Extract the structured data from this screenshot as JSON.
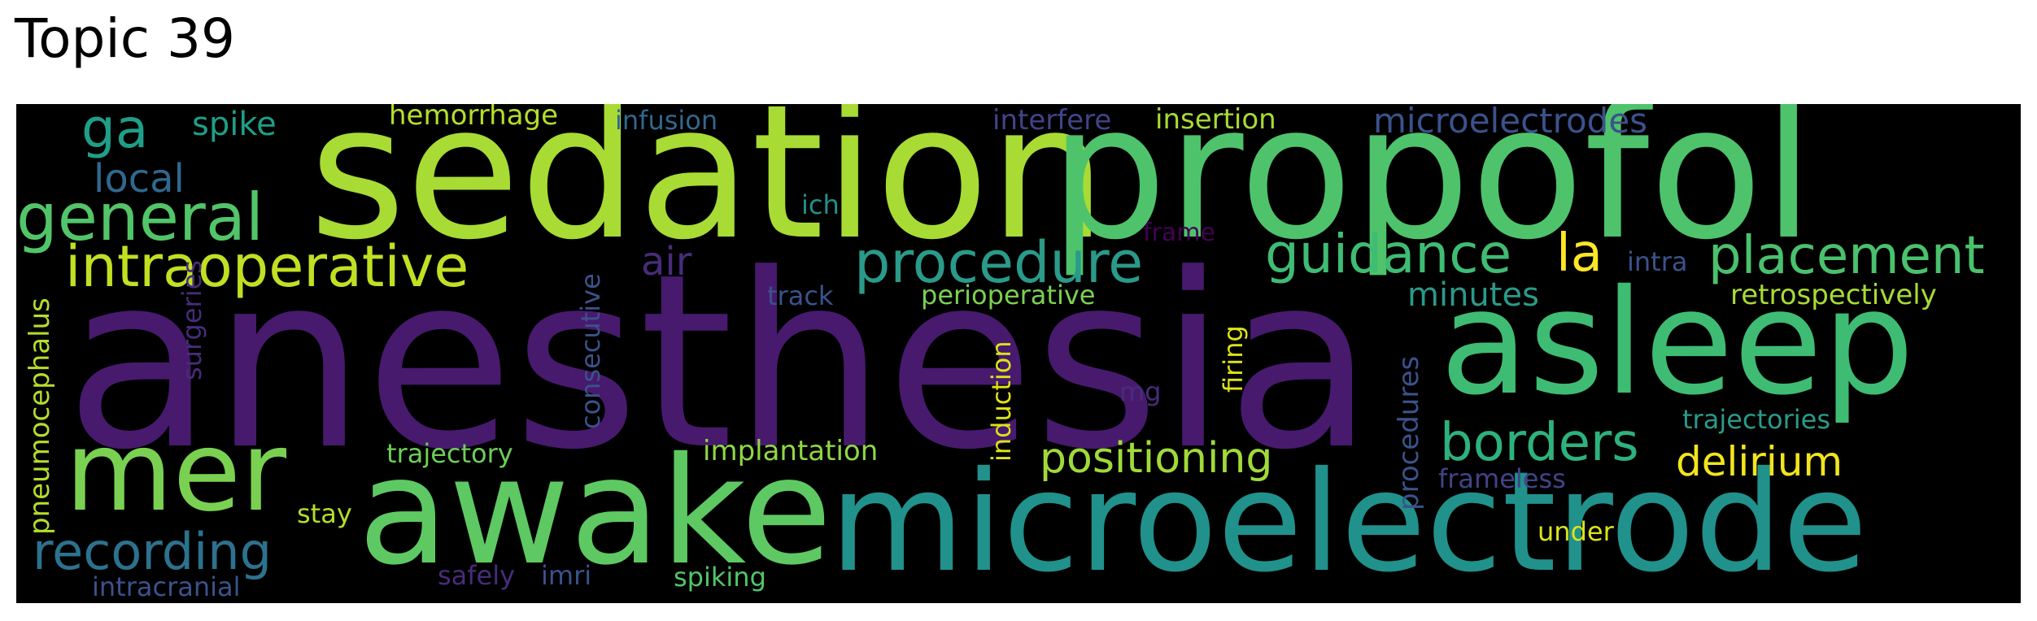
{
  "title": "Topic 39",
  "colors": {
    "purple": "#440154",
    "indigo": "#472c7a",
    "blue": "#3b528b",
    "teal_blue": "#31688e",
    "teal": "#26828e",
    "teal_green": "#1f9e89",
    "green": "#35b779",
    "lime_green": "#6ece58",
    "lime": "#b5de2b",
    "yellow": "#fde725"
  },
  "words": {
    "anesthesia": "anesthesia",
    "sedation": "sedation",
    "propofol": "propofol",
    "asleep": "asleep",
    "awake": "awake",
    "microelectrode": "microelectrode",
    "mer": "mer",
    "general": "general",
    "intraoperative": "intraoperative",
    "procedure": "procedure",
    "guidance": "guidance",
    "placement": "placement",
    "recording": "recording",
    "positioning": "positioning",
    "borders": "borders",
    "delirium": "delirium",
    "ga": "ga",
    "local": "local",
    "spike": "spike",
    "hemorrhage": "hemorrhage",
    "infusion": "infusion",
    "interfere": "interfere",
    "insertion": "insertion",
    "microelectrodes": "microelectrodes",
    "ich": "ich",
    "frame": "frame",
    "air": "air",
    "la": "la",
    "intra": "intra",
    "track": "track",
    "perioperative": "perioperative",
    "minutes": "minutes",
    "retrospectively": "retrospectively",
    "pneumocephalus": "pneumocephalus",
    "surgeries": "surgeries",
    "consecutive": "consecutive",
    "induction": "induction",
    "firing": "firing",
    "mg": "mg",
    "procedures": "procedures",
    "trajectories": "trajectories",
    "trajectory": "trajectory",
    "implantation": "implantation",
    "frameless": "frameless",
    "stay": "stay",
    "under": "under",
    "safely": "safely",
    "imri": "imri",
    "spiking": "spiking",
    "intracranial": "intracranial"
  }
}
